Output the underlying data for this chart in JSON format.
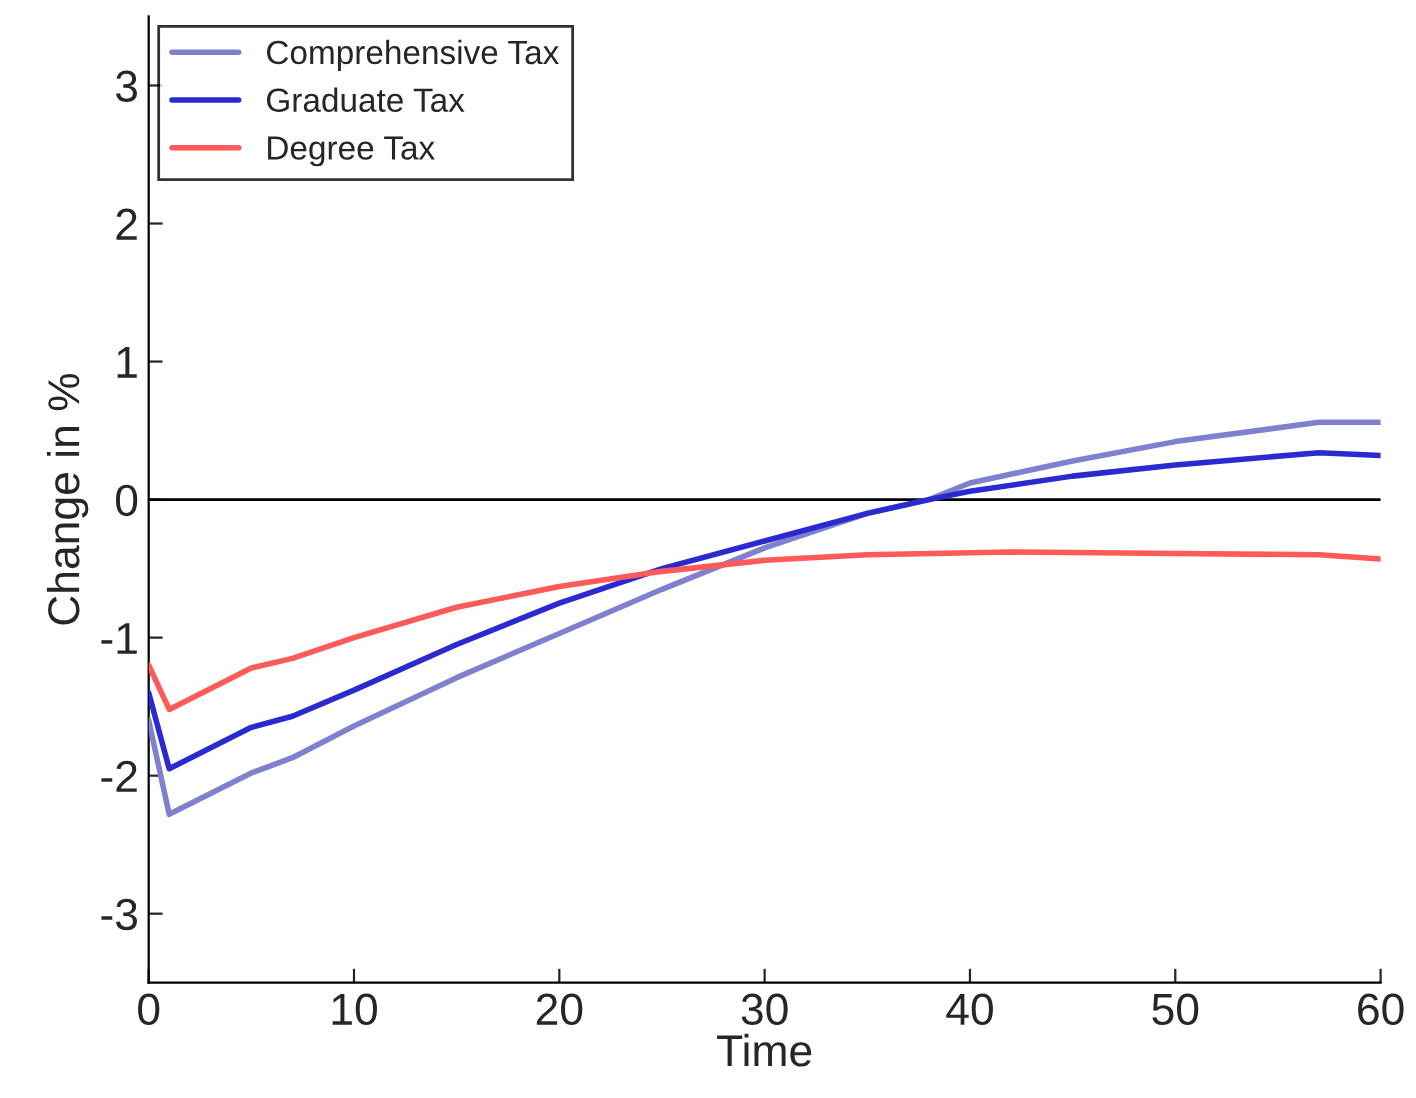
{
  "chart_data": {
    "type": "line",
    "xlabel": "Time",
    "ylabel": "Change in %",
    "xlim": [
      0,
      60
    ],
    "xticks": [
      0,
      10,
      20,
      30,
      40,
      50,
      60
    ],
    "ylim": [
      -3.5,
      3.5
    ],
    "yticks": [
      -3,
      -2,
      -1,
      0,
      1,
      2,
      3
    ],
    "grid": false,
    "legend": "top left",
    "line_style": "solid",
    "marker": "none",
    "ref_lines": [
      {
        "axis": "y",
        "value": 0,
        "color": "#000000"
      }
    ],
    "series": [
      {
        "name": "Comprehensive Tax",
        "color": "#8080d0",
        "x": [
          0,
          1,
          5,
          7,
          10,
          15,
          20,
          25,
          30,
          35,
          38,
          40,
          45,
          50,
          57,
          60
        ],
        "values": [
          -1.6,
          -2.28,
          -1.98,
          -1.87,
          -1.64,
          -1.29,
          -0.97,
          -0.65,
          -0.35,
          -0.1,
          0,
          0.12,
          0.28,
          0.42,
          0.56,
          0.56
        ]
      },
      {
        "name": "Graduate Tax",
        "color": "#2a2ad0",
        "x": [
          0,
          1,
          5,
          7,
          10,
          15,
          20,
          25,
          30,
          35,
          38,
          40,
          45,
          50,
          57,
          60
        ],
        "values": [
          -1.4,
          -1.95,
          -1.65,
          -1.57,
          -1.38,
          -1.05,
          -0.75,
          -0.5,
          -0.3,
          -0.1,
          0,
          0.06,
          0.17,
          0.25,
          0.34,
          0.32
        ]
      },
      {
        "name": "Degree Tax",
        "color": "#ff5a5a",
        "x": [
          0,
          1,
          5,
          7,
          10,
          15,
          20,
          25,
          30,
          35,
          42,
          50,
          57,
          60
        ],
        "values": [
          -1.2,
          -1.52,
          -1.22,
          -1.15,
          -1.0,
          -0.78,
          -0.63,
          -0.52,
          -0.44,
          -0.4,
          -0.38,
          -0.39,
          -0.4,
          -0.43
        ]
      }
    ]
  }
}
